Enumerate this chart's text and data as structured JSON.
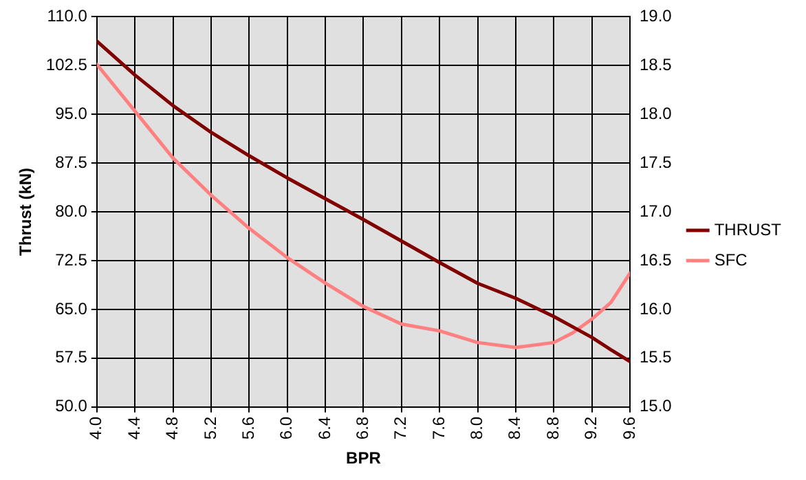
{
  "chart_data": {
    "type": "line",
    "xlabel": "BPR",
    "ylabel": "Thrust (kN)",
    "xlim": [
      4.0,
      9.6
    ],
    "xticks": [
      {
        "value": 4.0,
        "label": "4.0"
      },
      {
        "value": 4.4,
        "label": "4.4"
      },
      {
        "value": 4.8,
        "label": "4.8"
      },
      {
        "value": 5.2,
        "label": "5.2"
      },
      {
        "value": 5.6,
        "label": "5.6"
      },
      {
        "value": 6.0,
        "label": "6.0"
      },
      {
        "value": 6.4,
        "label": "6.4"
      },
      {
        "value": 6.8,
        "label": "6.8"
      },
      {
        "value": 7.2,
        "label": "7.2"
      },
      {
        "value": 7.6,
        "label": "7.6"
      },
      {
        "value": 8.0,
        "label": "8.0"
      },
      {
        "value": 8.4,
        "label": "8.4"
      },
      {
        "value": 8.8,
        "label": "8.8"
      },
      {
        "value": 9.2,
        "label": "9.2"
      },
      {
        "value": 9.6,
        "label": "9.6"
      }
    ],
    "ylim": [
      50,
      110
    ],
    "yticks": [
      {
        "value": 50,
        "label": "50.0"
      },
      {
        "value": 57.5,
        "label": "57.5"
      },
      {
        "value": 65,
        "label": "65.0"
      },
      {
        "value": 72.5,
        "label": "72.5"
      },
      {
        "value": 80,
        "label": "80.0"
      },
      {
        "value": 87.5,
        "label": "87.5"
      },
      {
        "value": 95,
        "label": "95.0"
      },
      {
        "value": 102.5,
        "label": "102.5"
      },
      {
        "value": 110,
        "label": "110.0"
      }
    ],
    "y2lim": [
      15,
      19
    ],
    "y2ticks": [
      {
        "value": 15,
        "label": "15.0"
      },
      {
        "value": 15.5,
        "label": "15.5"
      },
      {
        "value": 16,
        "label": "16.0"
      },
      {
        "value": 16.5,
        "label": "16.5"
      },
      {
        "value": 17,
        "label": "17.0"
      },
      {
        "value": 17.5,
        "label": "17.5"
      },
      {
        "value": 18,
        "label": "18.0"
      },
      {
        "value": 18.5,
        "label": "18.5"
      },
      {
        "value": 19,
        "label": "19.0"
      }
    ],
    "grid": true,
    "legend": "right",
    "marker": "none",
    "line_style": "solid",
    "series": [
      {
        "name": "THRUST",
        "color": "#800000",
        "x": [
          4.0,
          4.4,
          4.8,
          5.2,
          5.6,
          6.0,
          6.4,
          6.8,
          7.2,
          7.6,
          8.0,
          8.4,
          8.8,
          9.0,
          9.2,
          9.4,
          9.6
        ],
        "values": [
          106.2,
          101.0,
          96.3,
          92.2,
          88.6,
          85.2,
          82.0,
          78.8,
          75.5,
          72.2,
          69.0,
          66.7,
          63.9,
          62.3,
          60.7,
          58.8,
          57.0
        ]
      },
      {
        "name": "SFC",
        "color": "#ff8080",
        "axis": "y2",
        "x": [
          4.0,
          4.4,
          4.8,
          5.2,
          5.6,
          6.0,
          6.4,
          6.8,
          7.2,
          7.6,
          8.0,
          8.4,
          8.8,
          9.0,
          9.2,
          9.4,
          9.6
        ],
        "values": [
          18.51,
          18.03,
          17.55,
          17.17,
          16.83,
          16.53,
          16.27,
          16.03,
          15.85,
          15.78,
          15.66,
          15.61,
          15.66,
          15.76,
          15.9,
          16.07,
          16.37
        ]
      }
    ]
  }
}
